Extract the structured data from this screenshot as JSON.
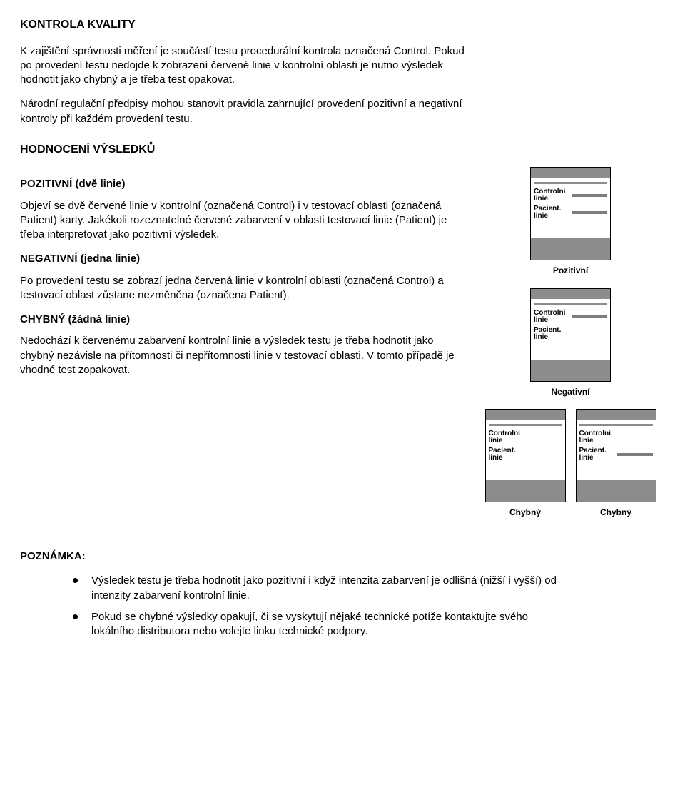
{
  "section1": {
    "title": "KONTROLA KVALITY",
    "p1": "K zajištění správnosti měření je součástí testu procedurální kontrola označená Control. Pokud po provedení testu nedojde k zobrazení červené linie v kontrolní oblasti je nutno výsledek hodnotit jako chybný a je třeba test opakovat.",
    "p2": "Národní regulační předpisy mohou stanovit pravidla zahrnující provedení pozitivní a negativní kontroly při každém provedení testu."
  },
  "section2": {
    "title": "HODNOCENÍ VÝSLEDKŮ",
    "positive": {
      "head": "POZITIVNÍ (dvě linie)",
      "p": "Objeví se dvě červené linie v kontrolní (označená Control) i v testovací oblasti (označená Patient) karty. Jakékoli rozeznatelné červené zabarvení v oblasti testovací linie (Patient) je třeba interpretovat jako pozitivní výsledek."
    },
    "negative": {
      "head": "NEGATIVNÍ (jedna linie)",
      "p": "Po provedení testu se zobrazí jedna červená linie v kontrolní oblasti (označená Control) a testovací oblast zůstane nezměněna (označena Patient)."
    },
    "invalid": {
      "head": "CHYBNÝ (žádná linie)",
      "p": "Nedochází k červenému zabarvení kontrolní linie a výsledek testu je třeba hodnotit jako chybný nezávisle na přítomnosti či nepřítomnosti linie v testovací oblasti. V tomto případě je vhodné test zopakovat."
    }
  },
  "note": {
    "label": "POZNÁMKA:",
    "items": [
      "Výsledek testu je třeba hodnotit jako pozitivní i když intenzita zabarvení je odlišná (nižší i vyšší) od intenzity zabarvení kontrolní linie.",
      "Pokud se chybné výsledky opakují, či se vyskytují nějaké technické potíže kontaktujte svého lokálního distributora nebo volejte linku technické podpory."
    ]
  },
  "figures": {
    "labels": {
      "control": "Controlni linie",
      "patient": "Pacient. linie"
    },
    "positive_caption": "Pozitivní",
    "negative_caption": "Negativní",
    "invalid_caption": "Chybný",
    "colors": {
      "border": "#000000",
      "bar": "#8c8c8c",
      "line": "#7d7d7d",
      "grey_block": "#c9c9c9",
      "bg": "#ffffff",
      "text": "#000000"
    },
    "strips": {
      "positive": {
        "control_line": true,
        "patient_line": true
      },
      "negative": {
        "control_line": true,
        "patient_line": false
      },
      "invalid_a": {
        "control_line": false,
        "patient_line": false
      },
      "invalid_b": {
        "control_line": false,
        "patient_line": true
      }
    }
  }
}
